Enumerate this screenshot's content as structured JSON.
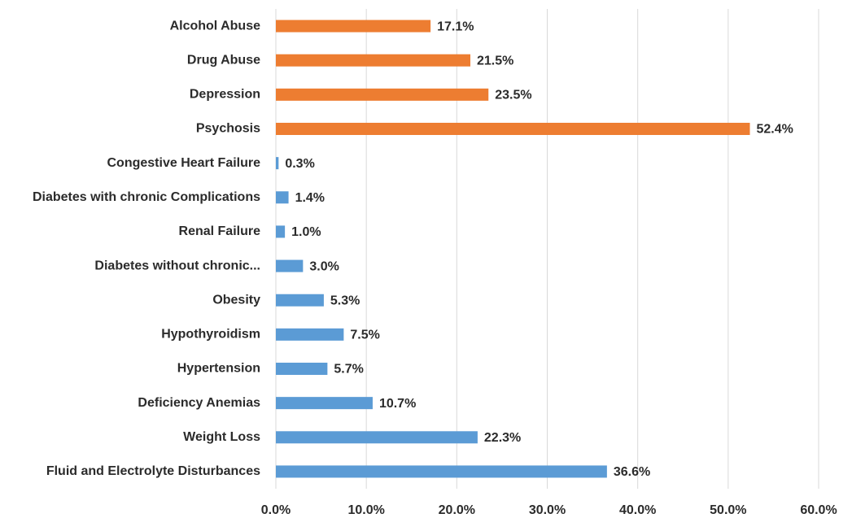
{
  "chart_data": {
    "type": "hbar",
    "categories": [
      "Alcohol Abuse",
      "Drug Abuse",
      "Depression",
      "Psychosis",
      "Congestive Heart Failure",
      "Diabetes with chronic Complications",
      "Renal Failure",
      "Diabetes without chronic...",
      "Obesity",
      "Hypothyroidism",
      "Hypertension",
      "Deficiency Anemias",
      "Weight Loss",
      "Fluid and Electrolyte Disturbances"
    ],
    "values": [
      17.1,
      21.5,
      23.5,
      52.4,
      0.3,
      1.4,
      1.0,
      3.0,
      5.3,
      7.5,
      5.7,
      10.7,
      22.3,
      36.6
    ],
    "value_labels": [
      "17.1%",
      "21.5%",
      "23.5%",
      "52.4%",
      "0.3%",
      "1.4%",
      "1.0%",
      "3.0%",
      "5.3%",
      "7.5%",
      "5.7%",
      "10.7%",
      "22.3%",
      "36.6%"
    ],
    "colors": [
      "#ed7d31",
      "#ed7d31",
      "#ed7d31",
      "#ed7d31",
      "#5b9bd5",
      "#5b9bd5",
      "#5b9bd5",
      "#5b9bd5",
      "#5b9bd5",
      "#5b9bd5",
      "#5b9bd5",
      "#5b9bd5",
      "#5b9bd5",
      "#5b9bd5"
    ],
    "xlim": [
      0,
      60
    ],
    "xticks": [
      {
        "value": 0,
        "label": "0.0%"
      },
      {
        "value": 10,
        "label": "10.0%"
      },
      {
        "value": 20,
        "label": "20.0%"
      },
      {
        "value": 30,
        "label": "30.0%"
      },
      {
        "value": 40,
        "label": "40.0%"
      },
      {
        "value": 50,
        "label": "50.0%"
      },
      {
        "value": 60,
        "label": "60.0%"
      }
    ],
    "grid": true
  }
}
